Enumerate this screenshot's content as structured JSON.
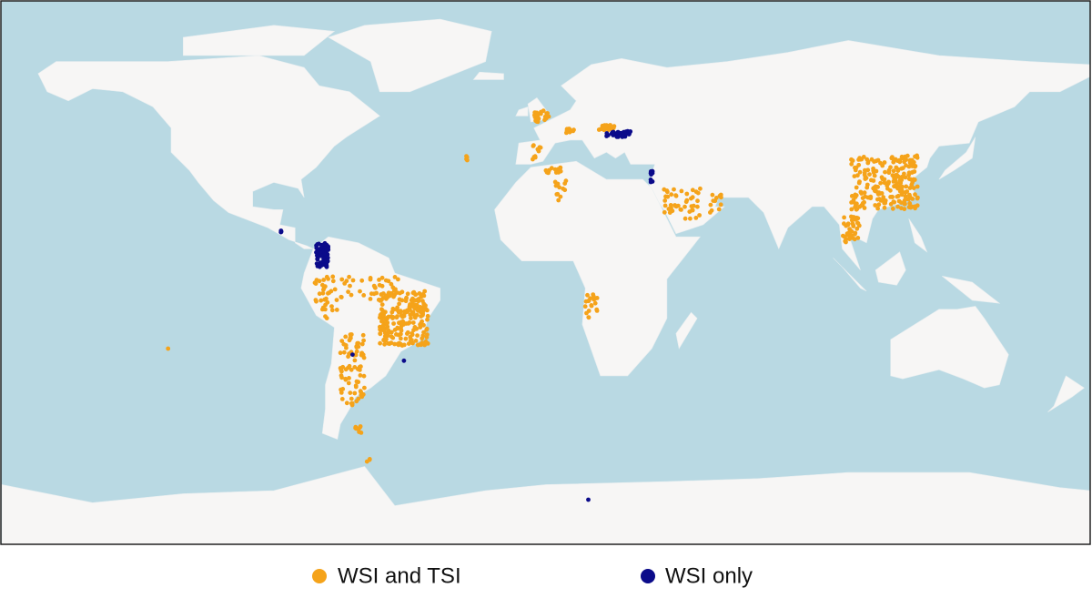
{
  "legend": {
    "items": [
      {
        "label": "WSI and TSI",
        "color": "#f5a31a"
      },
      {
        "label": "WSI only",
        "color": "#0b0b8a"
      }
    ]
  }
}
